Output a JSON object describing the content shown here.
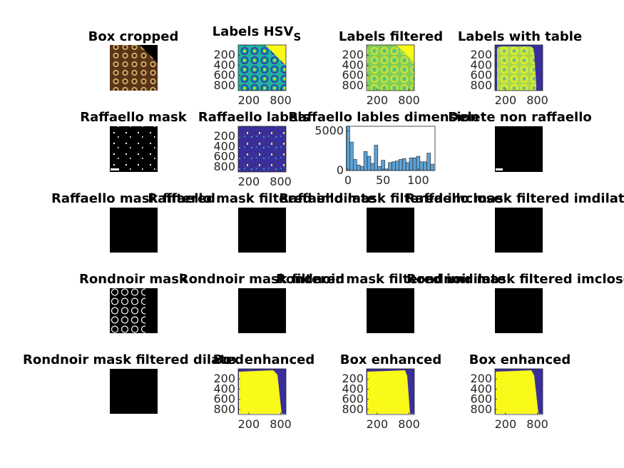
{
  "figure": {
    "titles": [
      "Box cropped",
      "Labels HSV",
      "Labels filtered",
      "Labels with table",
      "Raffaello mask",
      "Raffaello labels",
      "Raffaello lables dimension",
      "Delete non raffaello",
      "Raffaello mask filtered",
      "Raffaello mask filtered imdilate",
      "Raffaello mask filtered imclose",
      "Raffaello mask filtered imdilate",
      "Rondnoir mask",
      "Rondnoir mask filtered",
      "Rondnoir mask filtered imdilate",
      "Rondnoir mask filtered imclose",
      "Rondnoir mask filtered dilated",
      "Box enhanced",
      "Box enhanced",
      "Box enhanced"
    ],
    "title_subscript": "S",
    "image_ticks": [
      "200",
      "400",
      "600",
      "800"
    ],
    "image_xticks": [
      "200",
      "800"
    ],
    "colors": {
      "parula_dark": "#3a2f9a",
      "parula_teal": "#1fb3a4",
      "parula_green": "#7fcf55",
      "parula_yellow": "#f9f91a",
      "hist_bar": "#5fa3d6",
      "mask_black": "#000000"
    }
  },
  "chart_data": [
    {
      "type": "heatmap",
      "panel": "Labels HSV",
      "title": "Labels HSV_S",
      "xticks": [
        200,
        800
      ],
      "yticks": [
        200,
        400,
        600,
        800
      ]
    },
    {
      "type": "bar",
      "panel": "histogram",
      "title": "Raffaello lables dimension",
      "xlim": [
        -2,
        124
      ],
      "ylim": [
        0,
        5600
      ],
      "xticks": [
        0,
        50,
        100
      ],
      "yticks": [
        0,
        5000
      ],
      "categories": [
        0,
        5,
        10,
        15,
        20,
        25,
        30,
        35,
        40,
        45,
        50,
        55,
        60,
        65,
        70,
        75,
        80,
        85,
        90,
        95,
        100,
        105,
        110,
        115,
        120
      ],
      "values": [
        5600,
        3600,
        1400,
        700,
        500,
        2400,
        1800,
        900,
        3200,
        500,
        1300,
        200,
        1000,
        1100,
        1200,
        1400,
        1500,
        1000,
        1600,
        1600,
        1800,
        1100,
        1100,
        2200,
        800
      ],
      "grid": false
    }
  ]
}
